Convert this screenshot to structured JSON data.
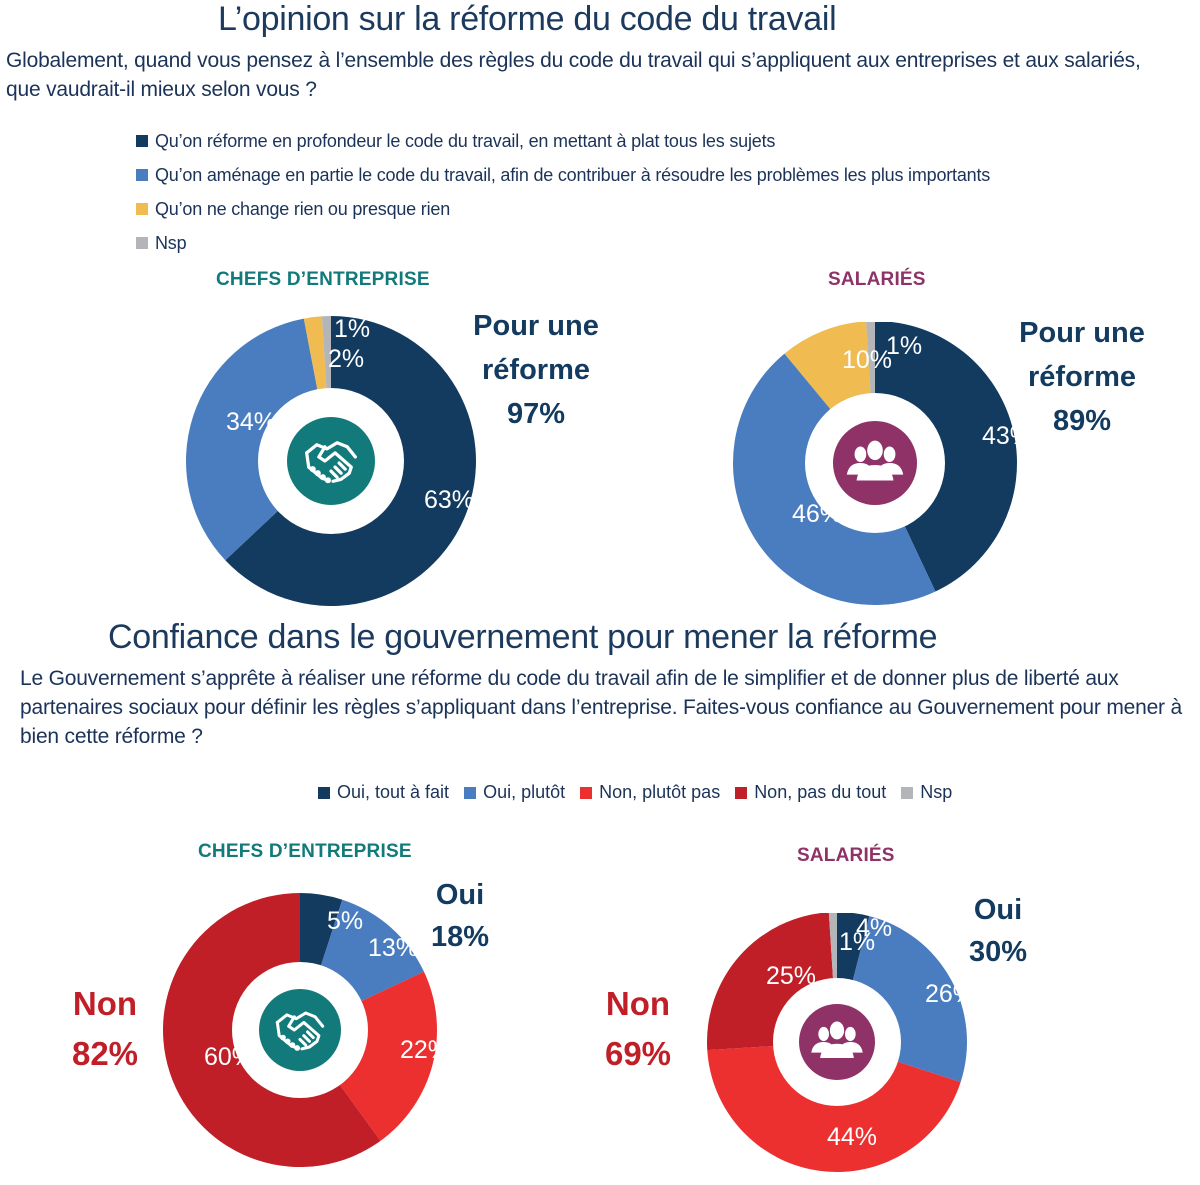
{
  "section1": {
    "title": "L’opinion sur la réforme du code du travail",
    "question": "Globalement, quand vous pensez à l’ensemble des règles du code du travail qui s’appliquent aux entreprises et aux salariés, que vaudrait-il mieux selon vous ?",
    "legend": [
      {
        "label": "Qu’on réforme en profondeur le code du travail, en mettant à plat tous les sujets",
        "color": "#133a5f"
      },
      {
        "label": "Qu’on aménage en partie le code du travail, afin de contribuer à résoudre les problèmes les plus importants",
        "color": "#4a7cc0"
      },
      {
        "label": "Qu’on ne change rien ou presque rien",
        "color": "#f0bb50"
      },
      {
        "label": "Nsp",
        "color": "#b4b5b8"
      }
    ],
    "chefs": {
      "label": "CHEFS D’ENTREPRISE",
      "label_color": "#127a7a",
      "icon": "handshake-icon",
      "callout": {
        "line1": "Pour une",
        "line2": "réforme",
        "value": "97%",
        "color": "#133a5f"
      }
    },
    "salaries": {
      "label": "SALARIÉS",
      "label_color": "#8e3267",
      "icon": "people-group-icon",
      "callout": {
        "line1": "Pour une",
        "line2": "réforme",
        "value": "89%",
        "color": "#133a5f"
      }
    }
  },
  "section2": {
    "title": "Confiance dans le gouvernement pour mener la réforme",
    "question": "Le Gouvernement s’apprête à réaliser une réforme du code du travail afin de le simplifier et de donner plus de liberté aux partenaires sociaux pour définir les règles s’appliquant dans l’entreprise. Faites-vous confiance au Gouvernement pour mener à bien cette réforme ?",
    "legend": [
      {
        "label": "Oui, tout à fait",
        "color": "#133a5f"
      },
      {
        "label": "Oui, plutôt",
        "color": "#4a7cc0"
      },
      {
        "label": "Non, plutôt pas",
        "color": "#ec3030"
      },
      {
        "label": "Non, pas du tout",
        "color": "#c11f27"
      },
      {
        "label": "Nsp",
        "color": "#b4b5b8"
      }
    ],
    "chefs": {
      "label": "CHEFS D’ENTREPRISE",
      "label_color": "#127a7a",
      "icon": "handshake-icon",
      "oui": {
        "label": "Oui",
        "value": "18%",
        "color": "#133a5f"
      },
      "non": {
        "label": "Non",
        "value": "82%",
        "color": "#c11f27"
      }
    },
    "salaries": {
      "label": "SALARIÉS",
      "label_color": "#8e3267",
      "icon": "people-group-icon",
      "oui": {
        "label": "Oui",
        "value": "30%",
        "color": "#133a5f"
      },
      "non": {
        "label": "Non",
        "value": "69%",
        "color": "#c11f27"
      }
    }
  },
  "chart_data": [
    {
      "type": "pie",
      "title": "L’opinion sur la réforme du code du travail — Chefs d’entreprise",
      "categories": [
        "Qu’on réforme en profondeur",
        "Qu’on aménage en partie",
        "Qu’on ne change rien ou presque rien",
        "Nsp"
      ],
      "values": [
        63,
        34,
        2,
        1
      ],
      "colors": [
        "#133a5f",
        "#4a7cc0",
        "#f0bb50",
        "#b4b5b8"
      ],
      "labels": [
        "63%",
        "34%",
        "2%",
        "1%"
      ],
      "annotation": "Pour une réforme 97%"
    },
    {
      "type": "pie",
      "title": "L’opinion sur la réforme du code du travail — Salariés",
      "categories": [
        "Qu’on réforme en profondeur",
        "Qu’on aménage en partie",
        "Qu’on ne change rien ou presque rien",
        "Nsp"
      ],
      "values": [
        43,
        46,
        10,
        1
      ],
      "colors": [
        "#133a5f",
        "#4a7cc0",
        "#f0bb50",
        "#b4b5b8"
      ],
      "labels": [
        "43%",
        "46%",
        "10%",
        "1%"
      ],
      "annotation": "Pour une réforme 89%"
    },
    {
      "type": "pie",
      "title": "Confiance dans le gouvernement — Chefs d’entreprise",
      "categories": [
        "Oui, tout à fait",
        "Oui, plutôt",
        "Non, plutôt pas",
        "Non, pas du tout",
        "Nsp"
      ],
      "values": [
        5,
        13,
        22,
        60,
        0
      ],
      "colors": [
        "#133a5f",
        "#4a7cc0",
        "#ec3030",
        "#c11f27",
        "#b4b5b8"
      ],
      "labels": [
        "5%",
        "13%",
        "22%",
        "60%",
        ""
      ],
      "annotation": "Oui 18% / Non 82%"
    },
    {
      "type": "pie",
      "title": "Confiance dans le gouvernement — Salariés",
      "categories": [
        "Oui, tout à fait",
        "Oui, plutôt",
        "Non, plutôt pas",
        "Non, pas du tout",
        "Nsp"
      ],
      "values": [
        4,
        26,
        44,
        25,
        1
      ],
      "colors": [
        "#133a5f",
        "#4a7cc0",
        "#ec3030",
        "#c11f27",
        "#b4b5b8"
      ],
      "labels": [
        "4%",
        "26%",
        "44%",
        "25%",
        "1%"
      ],
      "annotation": "Oui 30% / Non 69%"
    }
  ]
}
